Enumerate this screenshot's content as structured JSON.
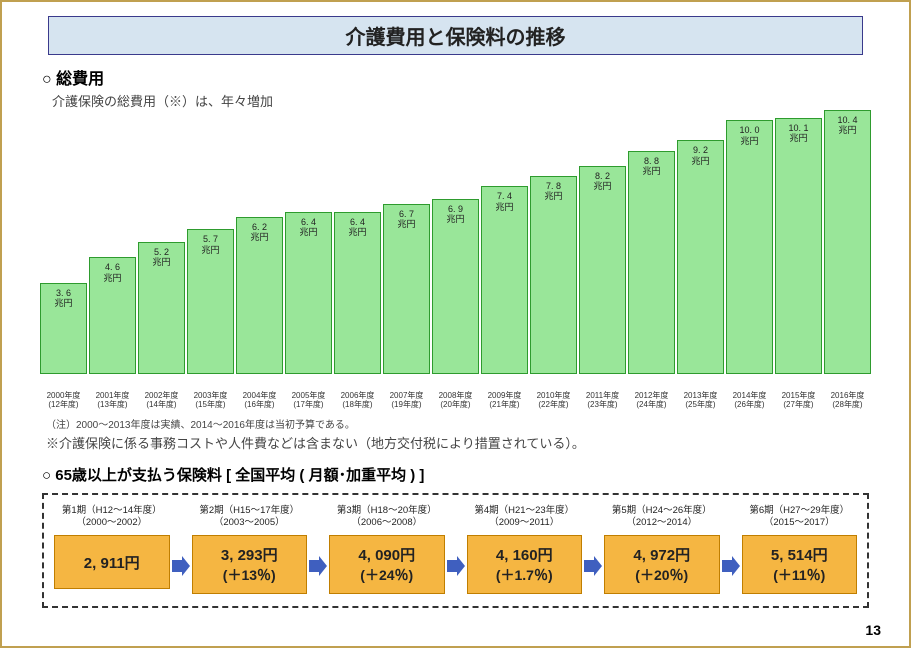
{
  "title": "介護費用と保険料の推移",
  "section1_heading": "○  総費用",
  "section1_subtitle": "介護保険の総費用（※）は、年々増加",
  "chart": {
    "type": "bar",
    "bar_color": "#99e699",
    "bar_border": "#2e9b2e",
    "title_background": "#d6e4f0",
    "title_border": "#3a3a8c",
    "unit": "兆円",
    "max_value": 10.4,
    "bars": [
      {
        "yearA": "2000年度",
        "yearB": "(12年度)",
        "value": 3.6,
        "label1": "3. 6",
        "label2": "兆円"
      },
      {
        "yearA": "2001年度",
        "yearB": "(13年度)",
        "value": 4.6,
        "label1": "4. 6",
        "label2": "兆円"
      },
      {
        "yearA": "2002年度",
        "yearB": "(14年度)",
        "value": 5.2,
        "label1": "5. 2",
        "label2": "兆円"
      },
      {
        "yearA": "2003年度",
        "yearB": "(15年度)",
        "value": 5.7,
        "label1": "5. 7",
        "label2": "兆円"
      },
      {
        "yearA": "2004年度",
        "yearB": "(16年度)",
        "value": 6.2,
        "label1": "6. 2",
        "label2": "兆円"
      },
      {
        "yearA": "2005年度",
        "yearB": "(17年度)",
        "value": 6.4,
        "label1": "6. 4",
        "label2": "兆円"
      },
      {
        "yearA": "2006年度",
        "yearB": "(18年度)",
        "value": 6.4,
        "label1": "6. 4",
        "label2": "兆円"
      },
      {
        "yearA": "2007年度",
        "yearB": "(19年度)",
        "value": 6.7,
        "label1": "6. 7",
        "label2": "兆円"
      },
      {
        "yearA": "2008年度",
        "yearB": "(20年度)",
        "value": 6.9,
        "label1": "6. 9",
        "label2": "兆円"
      },
      {
        "yearA": "2009年度",
        "yearB": "(21年度)",
        "value": 7.4,
        "label1": "7. 4",
        "label2": "兆円"
      },
      {
        "yearA": "2010年度",
        "yearB": "(22年度)",
        "value": 7.8,
        "label1": "7. 8",
        "label2": "兆円"
      },
      {
        "yearA": "2011年度",
        "yearB": "(23年度)",
        "value": 8.2,
        "label1": "8. 2",
        "label2": "兆円"
      },
      {
        "yearA": "2012年度",
        "yearB": "(24年度)",
        "value": 8.8,
        "label1": "8. 8",
        "label2": "兆円"
      },
      {
        "yearA": "2013年度",
        "yearB": "(25年度)",
        "value": 9.2,
        "label1": "9. 2",
        "label2": "兆円"
      },
      {
        "yearA": "2014年度",
        "yearB": "(26年度)",
        "value": 10.0,
        "label1": "10. 0",
        "label2": "兆円"
      },
      {
        "yearA": "2015年度",
        "yearB": "(27年度)",
        "value": 10.1,
        "label1": "10. 1",
        "label2": "兆円"
      },
      {
        "yearA": "2016年度",
        "yearB": "(28年度)",
        "value": 10.4,
        "label1": "10. 4",
        "label2": "兆円"
      }
    ]
  },
  "footnote1": "（注）2000～2013年度は実績、2014～2016年度は当初予算である。",
  "footnote2": "※介護保険に係る事務コストや人件費などは含まない（地方交付税により措置されている）。",
  "section2_heading": "○  65歳以上が支払う保険料 [  全国平均 ( 月額･加重平均 ) ]",
  "premiums": {
    "box_fill": "#f5b642",
    "box_border": "#c07e00",
    "arrow_fill": "#3f5fbf",
    "periods": [
      {
        "top1": "第1期（H12～14年度）",
        "top2": "（2000～2002）",
        "value": "2, 911円",
        "pct": ""
      },
      {
        "top1": "第2期（H15～17年度）",
        "top2": "（2003～2005）",
        "value": "3, 293円",
        "pct": "(＋13％)"
      },
      {
        "top1": "第3期（H18～20年度）",
        "top2": "（2006～2008）",
        "value": "4, 090円",
        "pct": "(＋24％)"
      },
      {
        "top1": "第4期（H21～23年度）",
        "top2": "（2009～2011）",
        "value": "4, 160円",
        "pct": "(＋1.7％)"
      },
      {
        "top1": "第5期（H24～26年度）",
        "top2": "（2012～2014）",
        "value": "4, 972円",
        "pct": "(＋20％)"
      },
      {
        "top1": "第6期（H27～29年度）",
        "top2": "（2015～2017）",
        "value": "5, 514円",
        "pct": "(＋11％)"
      }
    ]
  },
  "page_number": "13"
}
